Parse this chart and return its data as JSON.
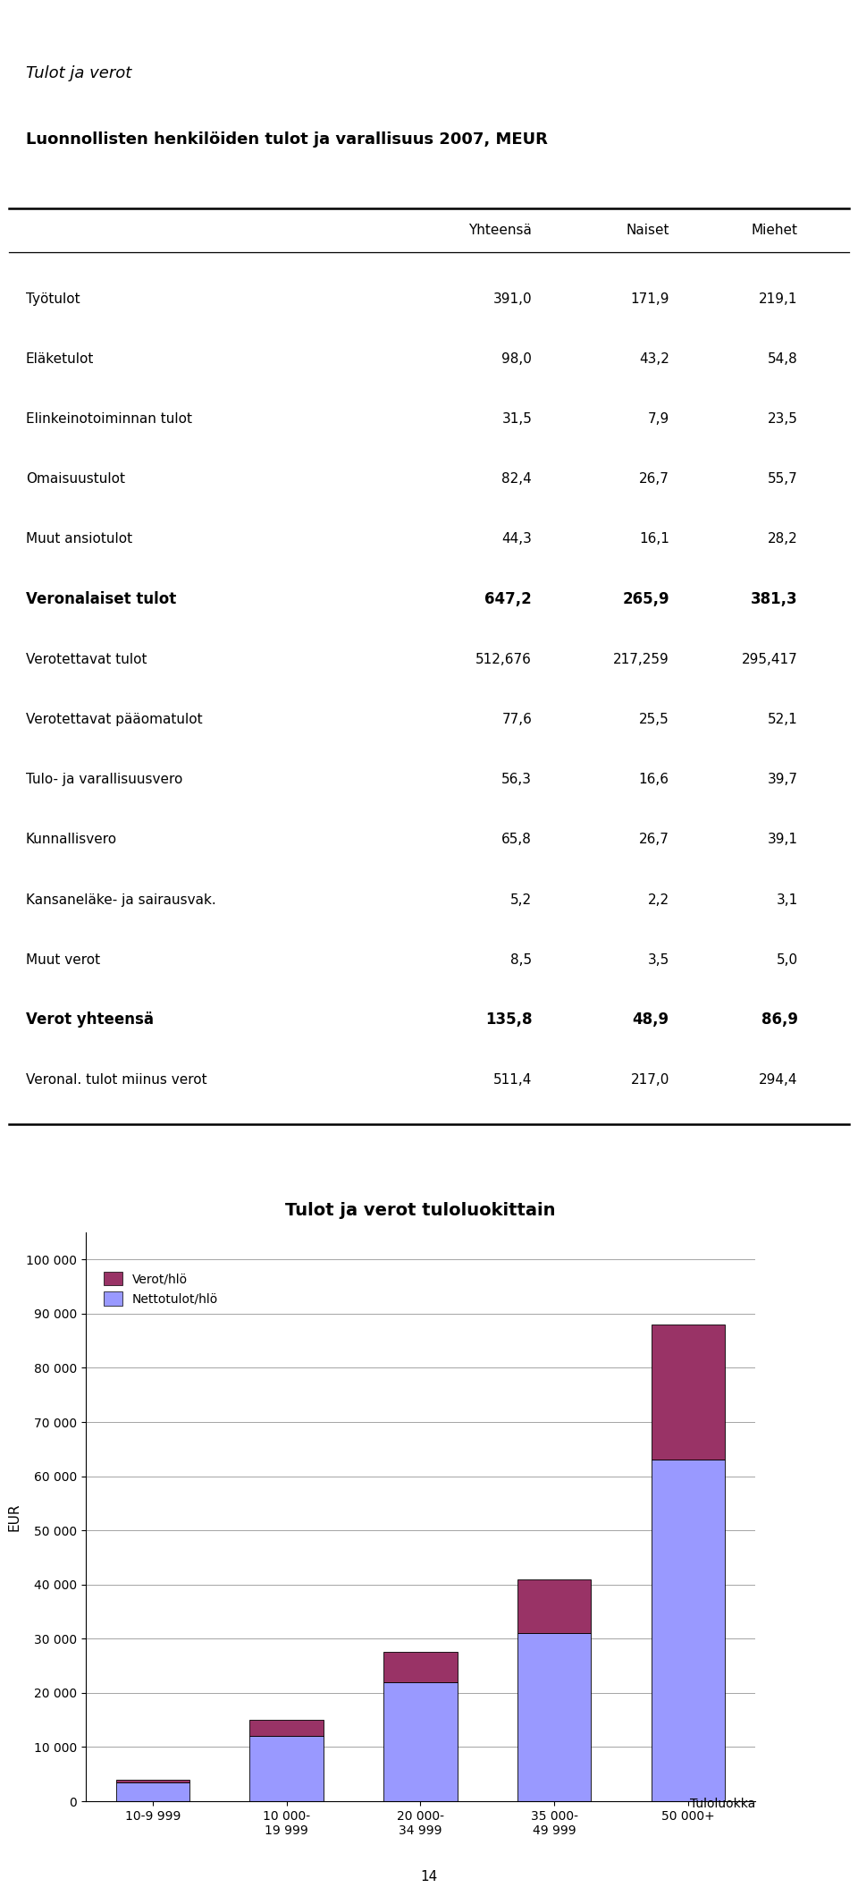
{
  "page_title": "Tulot ja verot",
  "table_title": "Luonnollisten henkilöiden tulot ja varallisuus 2007, MEUR",
  "col_headers": [
    "Yhteensä",
    "Naiset",
    "Miehet"
  ],
  "rows": [
    {
      "label": "Työtulot",
      "bold": false,
      "values": [
        "391,0",
        "171,9",
        "219,1"
      ]
    },
    {
      "label": "Eläketulot",
      "bold": false,
      "values": [
        "98,0",
        "43,2",
        "54,8"
      ]
    },
    {
      "label": "Elinkeinotoiminnan tulot",
      "bold": false,
      "values": [
        "31,5",
        "7,9",
        "23,5"
      ]
    },
    {
      "label": "Omaisuustulot",
      "bold": false,
      "values": [
        "82,4",
        "26,7",
        "55,7"
      ]
    },
    {
      "label": "Muut ansiotulot",
      "bold": false,
      "values": [
        "44,3",
        "16,1",
        "28,2"
      ]
    },
    {
      "label": "Veronalaiset tulot",
      "bold": true,
      "values": [
        "647,2",
        "265,9",
        "381,3"
      ]
    },
    {
      "label": "Verotettavat tulot",
      "bold": false,
      "values": [
        "512,676",
        "217,259",
        "295,417"
      ]
    },
    {
      "label": "Verotettavat pääomatulot",
      "bold": false,
      "values": [
        "77,6",
        "25,5",
        "52,1"
      ]
    },
    {
      "label": "Tulo- ja varallisuusvero",
      "bold": false,
      "values": [
        "56,3",
        "16,6",
        "39,7"
      ]
    },
    {
      "label": "Kunnallisvero",
      "bold": false,
      "values": [
        "65,8",
        "26,7",
        "39,1"
      ]
    },
    {
      "label": "Kansaneläke- ja sairausvak.",
      "bold": false,
      "values": [
        "5,2",
        "2,2",
        "3,1"
      ]
    },
    {
      "label": "Muut verot",
      "bold": false,
      "values": [
        "8,5",
        "3,5",
        "5,0"
      ]
    },
    {
      "label": "Verot yhteensä",
      "bold": true,
      "values": [
        "135,8",
        "48,9",
        "86,9"
      ]
    },
    {
      "label": "Veronal. tulot miinus verot",
      "bold": false,
      "values": [
        "511,4",
        "217,0",
        "294,4"
      ]
    }
  ],
  "chart_title": "Tulot ja verot tuloluokittain",
  "chart_ylabel": "EUR",
  "chart_xlabel_label": "Tuloluokka",
  "chart_categories": [
    "10-9 999",
    "10 000-\n19 999",
    "20 000-\n34 999",
    "35 000-\n49 999",
    "50 000+"
  ],
  "chart_netto": [
    3500,
    12000,
    22000,
    31000,
    63000
  ],
  "chart_verot": [
    500,
    3000,
    5500,
    10000,
    25000
  ],
  "color_netto": "#9999FF",
  "color_verot": "#993366",
  "yticks": [
    0,
    10000,
    20000,
    30000,
    40000,
    50000,
    60000,
    70000,
    80000,
    90000,
    100000
  ],
  "ylim": [
    0,
    105000
  ]
}
